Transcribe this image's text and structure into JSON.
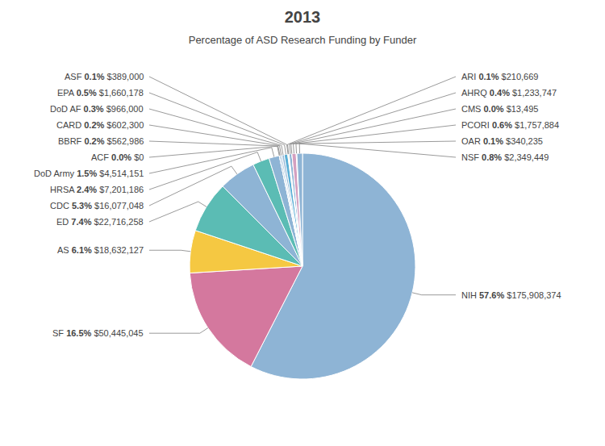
{
  "chart_data": {
    "type": "pie",
    "title": "2013",
    "subtitle": "Percentage of ASD Research Funding by Funder",
    "categories": [
      "NIH",
      "SF",
      "AS",
      "ED",
      "CDC",
      "HRSA",
      "DoD Army",
      "ACF",
      "BBRF",
      "CARD",
      "DoD AF",
      "EPA",
      "ASF",
      "ARI",
      "AHRQ",
      "CMS",
      "PCORI",
      "OAR",
      "NSF"
    ],
    "values": [
      57.6,
      16.5,
      6.1,
      7.4,
      5.3,
      2.4,
      1.5,
      0.0,
      0.2,
      0.2,
      0.3,
      0.5,
      0.1,
      0.1,
      0.4,
      0.0,
      0.6,
      0.1,
      0.8
    ],
    "value_labels": [
      "57.6%",
      "16.5%",
      "6.1%",
      "7.4%",
      "5.3%",
      "2.4%",
      "1.5%",
      "0.0%",
      "0.2%",
      "0.2%",
      "0.3%",
      "0.5%",
      "0.1%",
      "0.1%",
      "0.4%",
      "0.0%",
      "0.6%",
      "0.1%",
      "0.8%"
    ],
    "dollar_labels": [
      "$175,908,374",
      "$50,445,045",
      "$18,632,127",
      "$22,716,258",
      "$16,077,048",
      "$7,201,186",
      "$4,514,151",
      "$0",
      "$562,986",
      "$602,300",
      "$966,000",
      "$1,660,178",
      "$389,000",
      "$210,669",
      "$1,233,747",
      "$13,495",
      "$1,757,884",
      "$340,235",
      "$2,349,449"
    ],
    "colors": [
      "#8eb4d5",
      "#d4789e",
      "#f5c842",
      "#5bbcb4",
      "#8eb4d5",
      "#5bbcb4",
      "#8eb4d5",
      "#d4a0c0",
      "#8eb4d5",
      "#8eb4d5",
      "#8eb4d5",
      "#5bafd6",
      "#f5c842",
      "#8eb4d5",
      "#8eb4d5",
      "#8eb4d5",
      "#d4a0c0",
      "#d4a0c0",
      "#8eb4d5"
    ],
    "data_labels": true
  }
}
